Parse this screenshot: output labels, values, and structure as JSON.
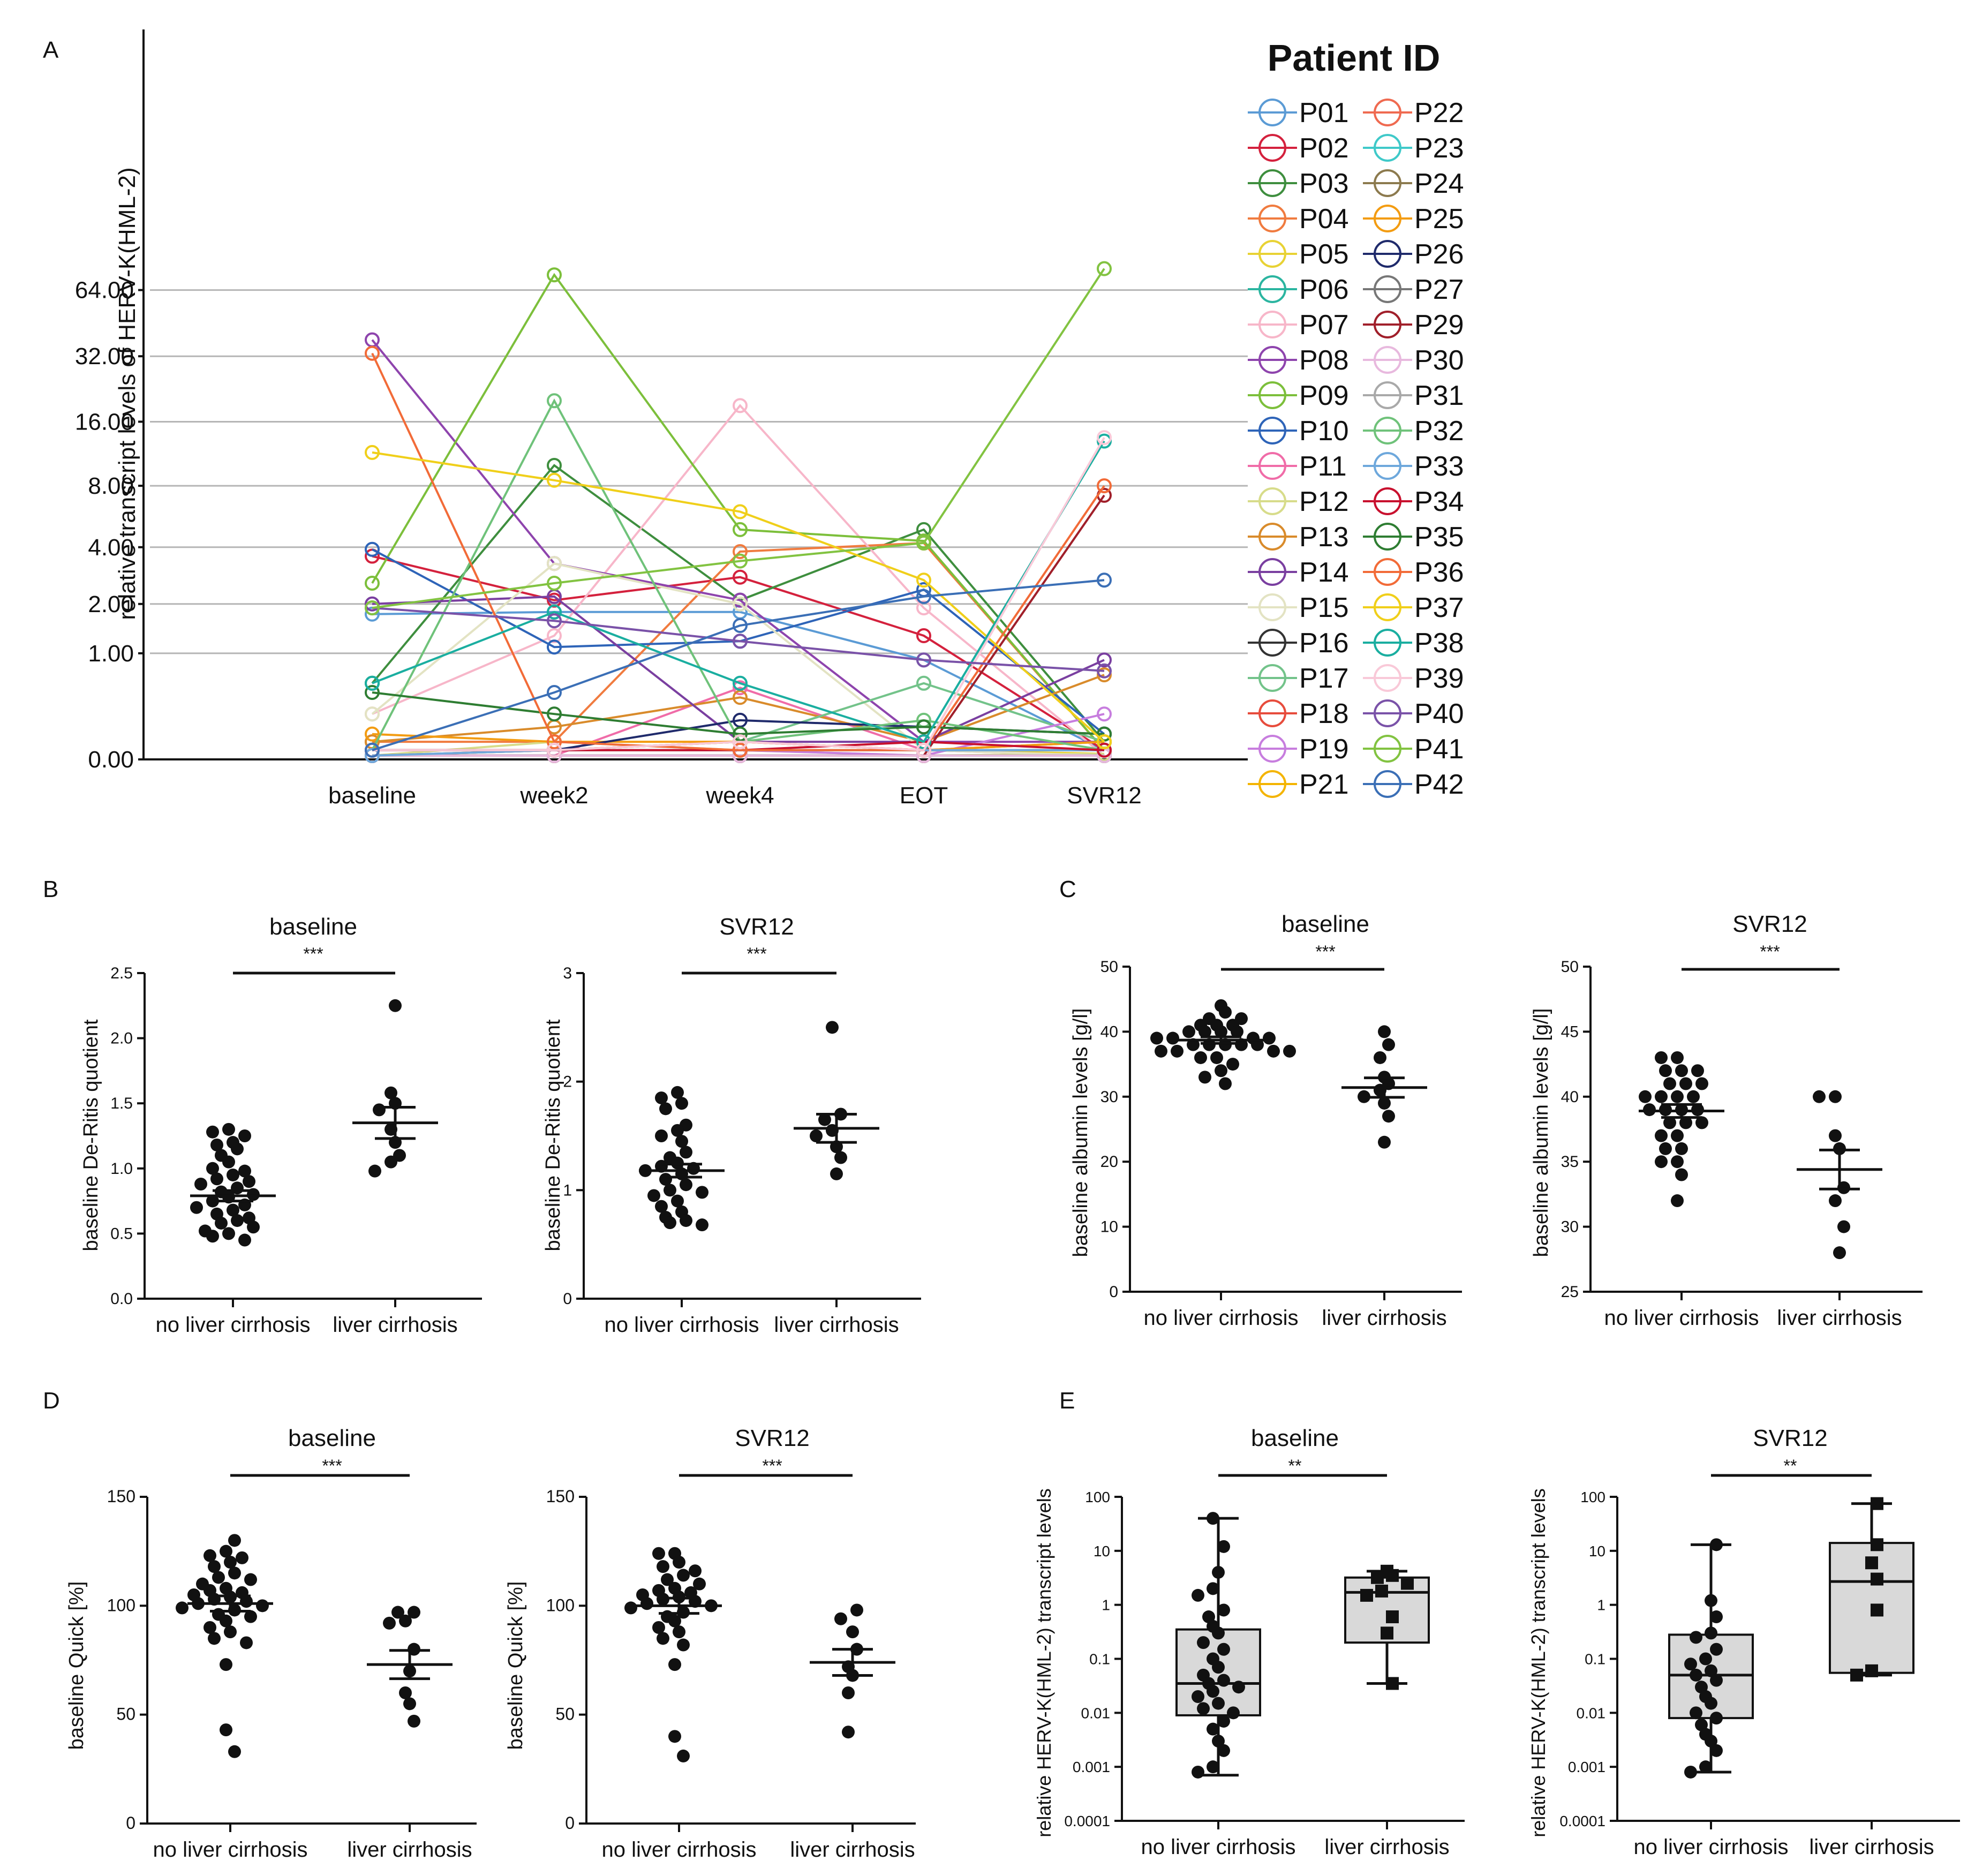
{
  "chart_data": [
    {
      "panel": "A",
      "type": "line",
      "ylabel": "relative transcript levels of HERV-K(HML-2)",
      "yticks": [
        "0.00",
        "1.00",
        "2.00",
        "4.00",
        "8.00",
        "16.00",
        "32.00",
        "64.00"
      ],
      "ytick_values": [
        0,
        1,
        2,
        4,
        8,
        16,
        32,
        64
      ],
      "categories": [
        "baseline",
        "week2",
        "week4",
        "EOT",
        "SVR12"
      ],
      "legend_title": "Patient ID",
      "series": [
        {
          "name": "P01",
          "color": "#5b9bd5",
          "values": [
            1.75,
            1.8,
            1.8,
            0.9,
            0.05
          ]
        },
        {
          "name": "P02",
          "color": "#d4213d",
          "values": [
            3.6,
            2.1,
            2.8,
            1.3,
            0.05
          ]
        },
        {
          "name": "P03",
          "color": "#3e8e3e",
          "values": [
            0.6,
            10,
            2.1,
            4.9,
            0.1
          ]
        },
        {
          "name": "P04",
          "color": "#f07b3f",
          "values": [
            0.1,
            0.1,
            3.8,
            4.2,
            0.05
          ]
        },
        {
          "name": "P05",
          "color": "#e8d234",
          "values": [
            0.05,
            0.05,
            0.1,
            0.05,
            0.03
          ]
        },
        {
          "name": "P06",
          "color": "#2bb5a0",
          "values": [
            0.02,
            0.02,
            0.02,
            0.02,
            0.02
          ]
        },
        {
          "name": "P07",
          "color": "#f7b6c9",
          "values": [
            0.3,
            1.3,
            19,
            1.9,
            0.02
          ]
        },
        {
          "name": "P08",
          "color": "#8e44ad",
          "values": [
            38,
            3.3,
            2.1,
            0.1,
            0.1
          ]
        },
        {
          "name": "P09",
          "color": "#7cbf3b",
          "values": [
            2.6,
            75,
            4.9,
            4.3,
            0.05
          ]
        },
        {
          "name": "P10",
          "color": "#2e64b8",
          "values": [
            3.9,
            1.1,
            1.2,
            2.4,
            0.15
          ]
        },
        {
          "name": "P11",
          "color": "#f06ca8",
          "values": [
            0.02,
            0.02,
            0.55,
            0.05,
            0.02
          ]
        },
        {
          "name": "P12",
          "color": "#d7dc8a",
          "values": [
            0.02,
            0.1,
            0.05,
            0.02,
            0.03
          ]
        },
        {
          "name": "P13",
          "color": "#d98b2b",
          "values": [
            0.1,
            0.2,
            0.45,
            0.1,
            0.7
          ]
        },
        {
          "name": "P14",
          "color": "#7a3fa0",
          "values": [
            2.0,
            2.2,
            0.1,
            0.1,
            0.9
          ]
        },
        {
          "name": "P15",
          "color": "#e3e3c3",
          "values": [
            0.3,
            3.3,
            2.0,
            0.05,
            0.02
          ]
        },
        {
          "name": "P16",
          "color": "#333333",
          "values": [
            0.02,
            0.02,
            0.02,
            0.02,
            0.02
          ]
        },
        {
          "name": "P17",
          "color": "#73c38a",
          "values": [
            0.02,
            0.05,
            0.1,
            0.6,
            0.1
          ]
        },
        {
          "name": "P18",
          "color": "#e74c3c",
          "values": [
            0.02,
            0.05,
            0.05,
            0.05,
            0.05
          ]
        },
        {
          "name": "P19",
          "color": "#c77dde",
          "values": [
            0.05,
            0.05,
            0.05,
            0.02,
            0.3
          ]
        },
        {
          "name": "P21",
          "color": "#f4b400",
          "values": [
            0.05,
            0.05,
            0.05,
            0.05,
            0.05
          ]
        },
        {
          "name": "P22",
          "color": "#ef6a50",
          "values": [
            0.05,
            0.05,
            0.1,
            0.05,
            0.1
          ]
        },
        {
          "name": "P23",
          "color": "#3fc9c9",
          "values": [
            0.05,
            0.05,
            0.05,
            0.05,
            0.05
          ]
        },
        {
          "name": "P24",
          "color": "#8c7a4e",
          "values": [
            0.05,
            0.05,
            0.05,
            0.05,
            0.05
          ]
        },
        {
          "name": "P25",
          "color": "#f39c12",
          "values": [
            0.15,
            0.1,
            0.1,
            0.05,
            0.1
          ]
        },
        {
          "name": "P26",
          "color": "#1f2a6b",
          "values": [
            0.05,
            0.05,
            0.25,
            0.2,
            0.15
          ]
        },
        {
          "name": "P27",
          "color": "#777777",
          "values": [
            0.02,
            0.02,
            0.02,
            0.02,
            0.02
          ]
        },
        {
          "name": "P29",
          "color": "#a01f2a",
          "values": [
            0.02,
            0.02,
            0.02,
            0.02,
            7.2
          ]
        },
        {
          "name": "P30",
          "color": "#e8b9de",
          "values": [
            0.02,
            0.02,
            0.02,
            0.02,
            0.02
          ]
        },
        {
          "name": "P31",
          "color": "#a9a9a9",
          "values": [
            0.05,
            0.05,
            0.05,
            0.05,
            0.05
          ]
        },
        {
          "name": "P32",
          "color": "#6fc27a",
          "values": [
            0.05,
            20,
            0.1,
            0.25,
            0.05
          ]
        },
        {
          "name": "P33",
          "color": "#6ea8dc",
          "values": [
            0.02,
            0.05,
            0.05,
            0.05,
            0.05
          ]
        },
        {
          "name": "P34",
          "color": "#c8102e",
          "values": [
            0.05,
            0.05,
            0.05,
            0.1,
            0.05
          ]
        },
        {
          "name": "P35",
          "color": "#2e7d32",
          "values": [
            0.5,
            0.3,
            0.15,
            0.2,
            0.15
          ]
        },
        {
          "name": "P36",
          "color": "#f26b38",
          "values": [
            33,
            0.1,
            0.05,
            0.05,
            8
          ]
        },
        {
          "name": "P37",
          "color": "#f0cf1a",
          "values": [
            11.5,
            8.5,
            6.0,
            2.7,
            0.1
          ]
        },
        {
          "name": "P38",
          "color": "#1aaea0",
          "values": [
            0.6,
            1.8,
            0.6,
            0.1,
            13
          ]
        },
        {
          "name": "P39",
          "color": "#f9c9d8",
          "values": [
            0.05,
            0.05,
            0.1,
            0.05,
            13.5
          ]
        },
        {
          "name": "P40",
          "color": "#7a52a8",
          "values": [
            1.9,
            1.6,
            1.2,
            0.9,
            0.75
          ]
        },
        {
          "name": "P41",
          "color": "#82c341",
          "values": [
            1.9,
            2.6,
            3.4,
            4.2,
            80
          ]
        },
        {
          "name": "P42",
          "color": "#3b6fb6",
          "values": [
            0.05,
            0.5,
            1.5,
            2.2,
            2.7
          ]
        }
      ]
    },
    {
      "panel": "B",
      "type": "scatter",
      "title": "baseline",
      "significance": "***",
      "ylabel": "baseline De-Ritis quotient",
      "yticks": [
        "0.0",
        "0.5",
        "1.0",
        "1.5",
        "2.0",
        "2.5"
      ],
      "ylim": [
        0,
        2.5
      ],
      "categories": [
        "no liver cirrhosis",
        "liver cirrhosis"
      ],
      "groups": [
        {
          "mean": 0.79,
          "sem": 0.04,
          "values": [
            1.3,
            1.28,
            1.25,
            1.2,
            1.18,
            1.15,
            1.1,
            1.05,
            1.0,
            0.98,
            0.95,
            0.92,
            0.9,
            0.88,
            0.85,
            0.82,
            0.8,
            0.78,
            0.75,
            0.72,
            0.7,
            0.68,
            0.65,
            0.62,
            0.6,
            0.58,
            0.55,
            0.52,
            0.5,
            0.48,
            0.45
          ]
        },
        {
          "mean": 1.35,
          "sem": 0.12,
          "values": [
            2.25,
            1.58,
            1.5,
            1.45,
            1.3,
            1.2,
            1.1,
            1.05,
            0.98
          ]
        }
      ]
    },
    {
      "panel": "B",
      "type": "scatter",
      "title": "SVR12",
      "significance": "***",
      "ylabel": "baseline De-Ritis quotient",
      "yticks": [
        "0",
        "1",
        "2",
        "3"
      ],
      "ylim": [
        0,
        3
      ],
      "categories": [
        "no liver cirrhosis",
        "liver cirrhosis"
      ],
      "groups": [
        {
          "mean": 1.18,
          "sem": 0.06,
          "values": [
            1.9,
            1.85,
            1.8,
            1.75,
            1.6,
            1.55,
            1.5,
            1.45,
            1.35,
            1.3,
            1.25,
            1.22,
            1.2,
            1.18,
            1.15,
            1.1,
            1.05,
            1.0,
            0.98,
            0.95,
            0.9,
            0.85,
            0.8,
            0.75,
            0.72,
            0.7,
            0.68
          ]
        },
        {
          "mean": 1.57,
          "sem": 0.13,
          "values": [
            2.5,
            1.7,
            1.65,
            1.55,
            1.5,
            1.4,
            1.3,
            1.15
          ]
        }
      ]
    },
    {
      "panel": "C",
      "type": "scatter",
      "title": "baseline",
      "significance": "***",
      "ylabel": "baseline albumin levels [g/l]",
      "yticks": [
        "0",
        "10",
        "20",
        "30",
        "40",
        "50"
      ],
      "ylim": [
        0,
        50
      ],
      "categories": [
        "no liver cirrhosis",
        "liver cirrhosis"
      ],
      "groups": [
        {
          "mean": 38.7,
          "sem": 0.5,
          "values": [
            44,
            43,
            42,
            42,
            41,
            41,
            41,
            40,
            40,
            40,
            40,
            39,
            39,
            39,
            39,
            38,
            38,
            38,
            38,
            38,
            37,
            37,
            37,
            37,
            36,
            36,
            35,
            34,
            33,
            32
          ]
        },
        {
          "mean": 31.4,
          "sem": 1.5,
          "values": [
            40,
            38,
            36,
            33,
            32,
            31,
            30,
            29,
            27,
            23
          ]
        }
      ]
    },
    {
      "panel": "C",
      "type": "scatter",
      "title": "SVR12",
      "significance": "***",
      "ylabel": "baseline albumin levels [g/l]",
      "yticks": [
        "25",
        "30",
        "35",
        "40",
        "45",
        "50"
      ],
      "ylim": [
        25,
        50
      ],
      "categories": [
        "no liver cirrhosis",
        "liver cirrhosis"
      ],
      "groups": [
        {
          "mean": 38.9,
          "sem": 0.5,
          "values": [
            43,
            43,
            42,
            42,
            42,
            41,
            41,
            41,
            40,
            40,
            40,
            40,
            39,
            39,
            39,
            39,
            38,
            38,
            38,
            37,
            37,
            36,
            36,
            35,
            35,
            34,
            32
          ]
        },
        {
          "mean": 34.4,
          "sem": 1.5,
          "values": [
            40,
            40,
            37,
            36,
            33,
            32,
            30,
            28
          ]
        }
      ]
    },
    {
      "panel": "D",
      "type": "scatter",
      "title": "baseline",
      "significance": "***",
      "ylabel": "baseline Quick [%]",
      "yticks": [
        "0",
        "50",
        "100",
        "150"
      ],
      "ylim": [
        0,
        150
      ],
      "categories": [
        "no liver cirrhosis",
        "liver cirrhosis"
      ],
      "groups": [
        {
          "mean": 101,
          "sem": 3.5,
          "values": [
            130,
            125,
            123,
            122,
            120,
            118,
            115,
            113,
            112,
            110,
            108,
            107,
            106,
            105,
            104,
            103,
            102,
            101,
            100,
            99,
            98,
            96,
            95,
            93,
            90,
            88,
            85,
            83,
            73,
            43,
            33
          ]
        },
        {
          "mean": 73,
          "sem": 6.5,
          "values": [
            97,
            97,
            93,
            92,
            80,
            70,
            60,
            55,
            47
          ]
        }
      ]
    },
    {
      "panel": "D",
      "type": "scatter",
      "title": "SVR12",
      "significance": "***",
      "ylabel": "baseline Quick [%]",
      "yticks": [
        "0",
        "50",
        "100",
        "150"
      ],
      "ylim": [
        0,
        150
      ],
      "categories": [
        "no liver cirrhosis",
        "liver cirrhosis"
      ],
      "groups": [
        {
          "mean": 100,
          "sem": 3.5,
          "values": [
            124,
            124,
            120,
            118,
            116,
            114,
            112,
            110,
            108,
            107,
            106,
            105,
            104,
            103,
            102,
            101,
            100,
            99,
            97,
            95,
            93,
            90,
            88,
            85,
            82,
            73,
            40,
            31
          ]
        },
        {
          "mean": 74,
          "sem": 6.0,
          "values": [
            98,
            94,
            88,
            80,
            72,
            68,
            60,
            42
          ]
        }
      ]
    },
    {
      "panel": "E",
      "type": "box",
      "title": "baseline",
      "significance": "**",
      "ylabel": "relative HERV-K(HML-2) transcript levels",
      "yticks": [
        "0.0001",
        "0.001",
        "0.01",
        "0.1",
        "1",
        "10",
        "100"
      ],
      "yscale": "log",
      "categories": [
        "no liver cirrhosis",
        "liver cirrhosis"
      ],
      "groups": [
        {
          "min": 0.0007,
          "q1": 0.009,
          "median": 0.035,
          "q3": 0.35,
          "max": 40,
          "marker": "circle",
          "values": [
            40,
            12,
            4,
            2,
            1.5,
            0.8,
            0.6,
            0.4,
            0.3,
            0.2,
            0.15,
            0.1,
            0.07,
            0.05,
            0.04,
            0.035,
            0.03,
            0.025,
            0.02,
            0.015,
            0.012,
            0.01,
            0.007,
            0.005,
            0.003,
            0.002,
            0.001,
            0.0008
          ]
        },
        {
          "min": 0.035,
          "q1": 0.2,
          "median": 1.7,
          "q3": 3.2,
          "max": 4.2,
          "marker": "square",
          "values": [
            4.2,
            3.5,
            3.2,
            2.5,
            1.8,
            1.5,
            0.6,
            0.3,
            0.035
          ]
        }
      ]
    },
    {
      "panel": "E",
      "type": "box",
      "title": "SVR12",
      "significance": "**",
      "ylabel": "relative HERV-K(HML-2) transcript levels",
      "yticks": [
        "0.0001",
        "0.001",
        "0.01",
        "0.1",
        "1",
        "10",
        "100"
      ],
      "yscale": "log",
      "categories": [
        "no liver cirrhosis",
        "liver cirrhosis"
      ],
      "groups": [
        {
          "min": 0.0008,
          "q1": 0.008,
          "median": 0.05,
          "q3": 0.28,
          "max": 13,
          "marker": "circle",
          "values": [
            13,
            1.2,
            0.6,
            0.3,
            0.25,
            0.15,
            0.1,
            0.08,
            0.06,
            0.05,
            0.04,
            0.03,
            0.02,
            0.015,
            0.01,
            0.008,
            0.006,
            0.004,
            0.003,
            0.002,
            0.001,
            0.0008
          ]
        },
        {
          "min": 0.05,
          "q1": 0.055,
          "median": 2.7,
          "q3": 14,
          "max": 75,
          "marker": "square",
          "values": [
            75,
            13,
            6,
            3,
            0.8,
            0.06,
            0.05
          ]
        }
      ]
    }
  ],
  "panel_labels": [
    "A",
    "B",
    "C",
    "D",
    "E"
  ]
}
